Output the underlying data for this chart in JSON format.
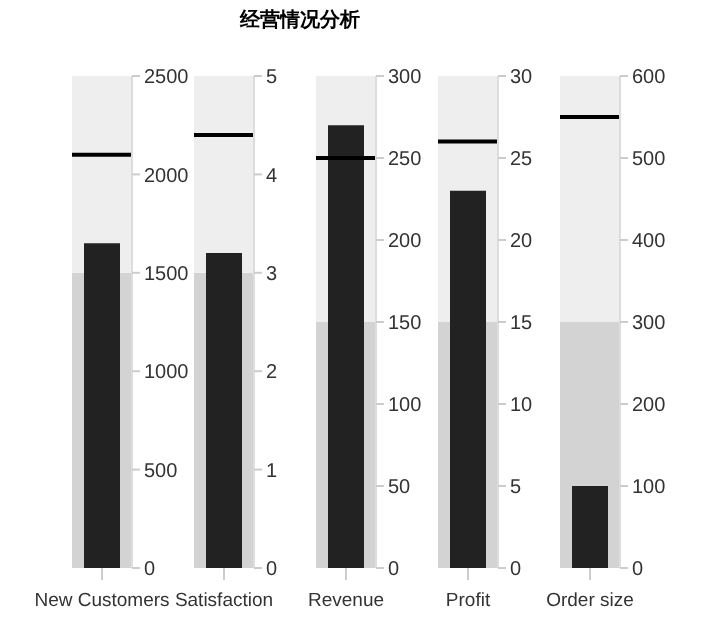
{
  "chart_data": [
    {
      "type": "bar",
      "categories": [
        "New Customers"
      ],
      "values": [
        1650
      ],
      "color": "#222222",
      "ylim": [
        0,
        2500
      ],
      "yticks": [
        0,
        500,
        1000,
        1500,
        2000,
        2500
      ],
      "bands": [
        {
          "axis": "y",
          "from": 0,
          "to": 1500,
          "color": "#d3d3d3"
        },
        {
          "axis": "y",
          "from": 1500,
          "to": 2500,
          "color": "#eeeeee"
        }
      ],
      "ref_lines": [
        {
          "axis": "y",
          "value": 2100,
          "color": "#000000"
        }
      ]
    },
    {
      "type": "bar",
      "title": "经营情况分析",
      "categories": [
        "Satisfaction"
      ],
      "values": [
        3.2
      ],
      "color": "#222222",
      "ylim": [
        0,
        5
      ],
      "yticks": [
        0,
        1,
        2,
        3,
        4,
        5
      ],
      "bands": [
        {
          "axis": "y",
          "from": 0,
          "to": 3,
          "color": "#d3d3d3"
        },
        {
          "axis": "y",
          "from": 3,
          "to": 5,
          "color": "#eeeeee"
        }
      ],
      "ref_lines": [
        {
          "axis": "y",
          "value": 4.4,
          "color": "#000000"
        }
      ]
    },
    {
      "type": "bar",
      "categories": [
        "Revenue"
      ],
      "values": [
        270
      ],
      "color": "#222222",
      "ylim": [
        0,
        300
      ],
      "yticks": [
        0,
        50,
        100,
        150,
        200,
        250,
        300
      ],
      "bands": [
        {
          "axis": "y",
          "from": 0,
          "to": 150,
          "color": "#d3d3d3"
        },
        {
          "axis": "y",
          "from": 150,
          "to": 300,
          "color": "#eeeeee"
        }
      ],
      "ref_lines": [
        {
          "axis": "y",
          "value": 250,
          "color": "#000000"
        }
      ]
    },
    {
      "type": "bar",
      "categories": [
        "Profit"
      ],
      "values": [
        23
      ],
      "color": "#222222",
      "ylim": [
        0,
        30
      ],
      "yticks": [
        0,
        5,
        10,
        15,
        20,
        25,
        30
      ],
      "bands": [
        {
          "axis": "y",
          "from": 0,
          "to": 15,
          "color": "#d3d3d3"
        },
        {
          "axis": "y",
          "from": 15,
          "to": 30,
          "color": "#eeeeee"
        }
      ],
      "ref_lines": [
        {
          "axis": "y",
          "value": 26,
          "color": "#000000"
        }
      ]
    },
    {
      "type": "bar",
      "categories": [
        "Order size"
      ],
      "values": [
        100
      ],
      "color": "#222222",
      "ylim": [
        0,
        600
      ],
      "yticks": [
        0,
        100,
        200,
        300,
        400,
        500,
        600
      ],
      "bands": [
        {
          "axis": "y",
          "from": 0,
          "to": 300,
          "color": "#d3d3d3"
        },
        {
          "axis": "y",
          "from": 300,
          "to": 600,
          "color": "#eeeeee"
        }
      ],
      "ref_lines": [
        {
          "axis": "y",
          "value": 550,
          "color": "#000000"
        }
      ]
    }
  ]
}
